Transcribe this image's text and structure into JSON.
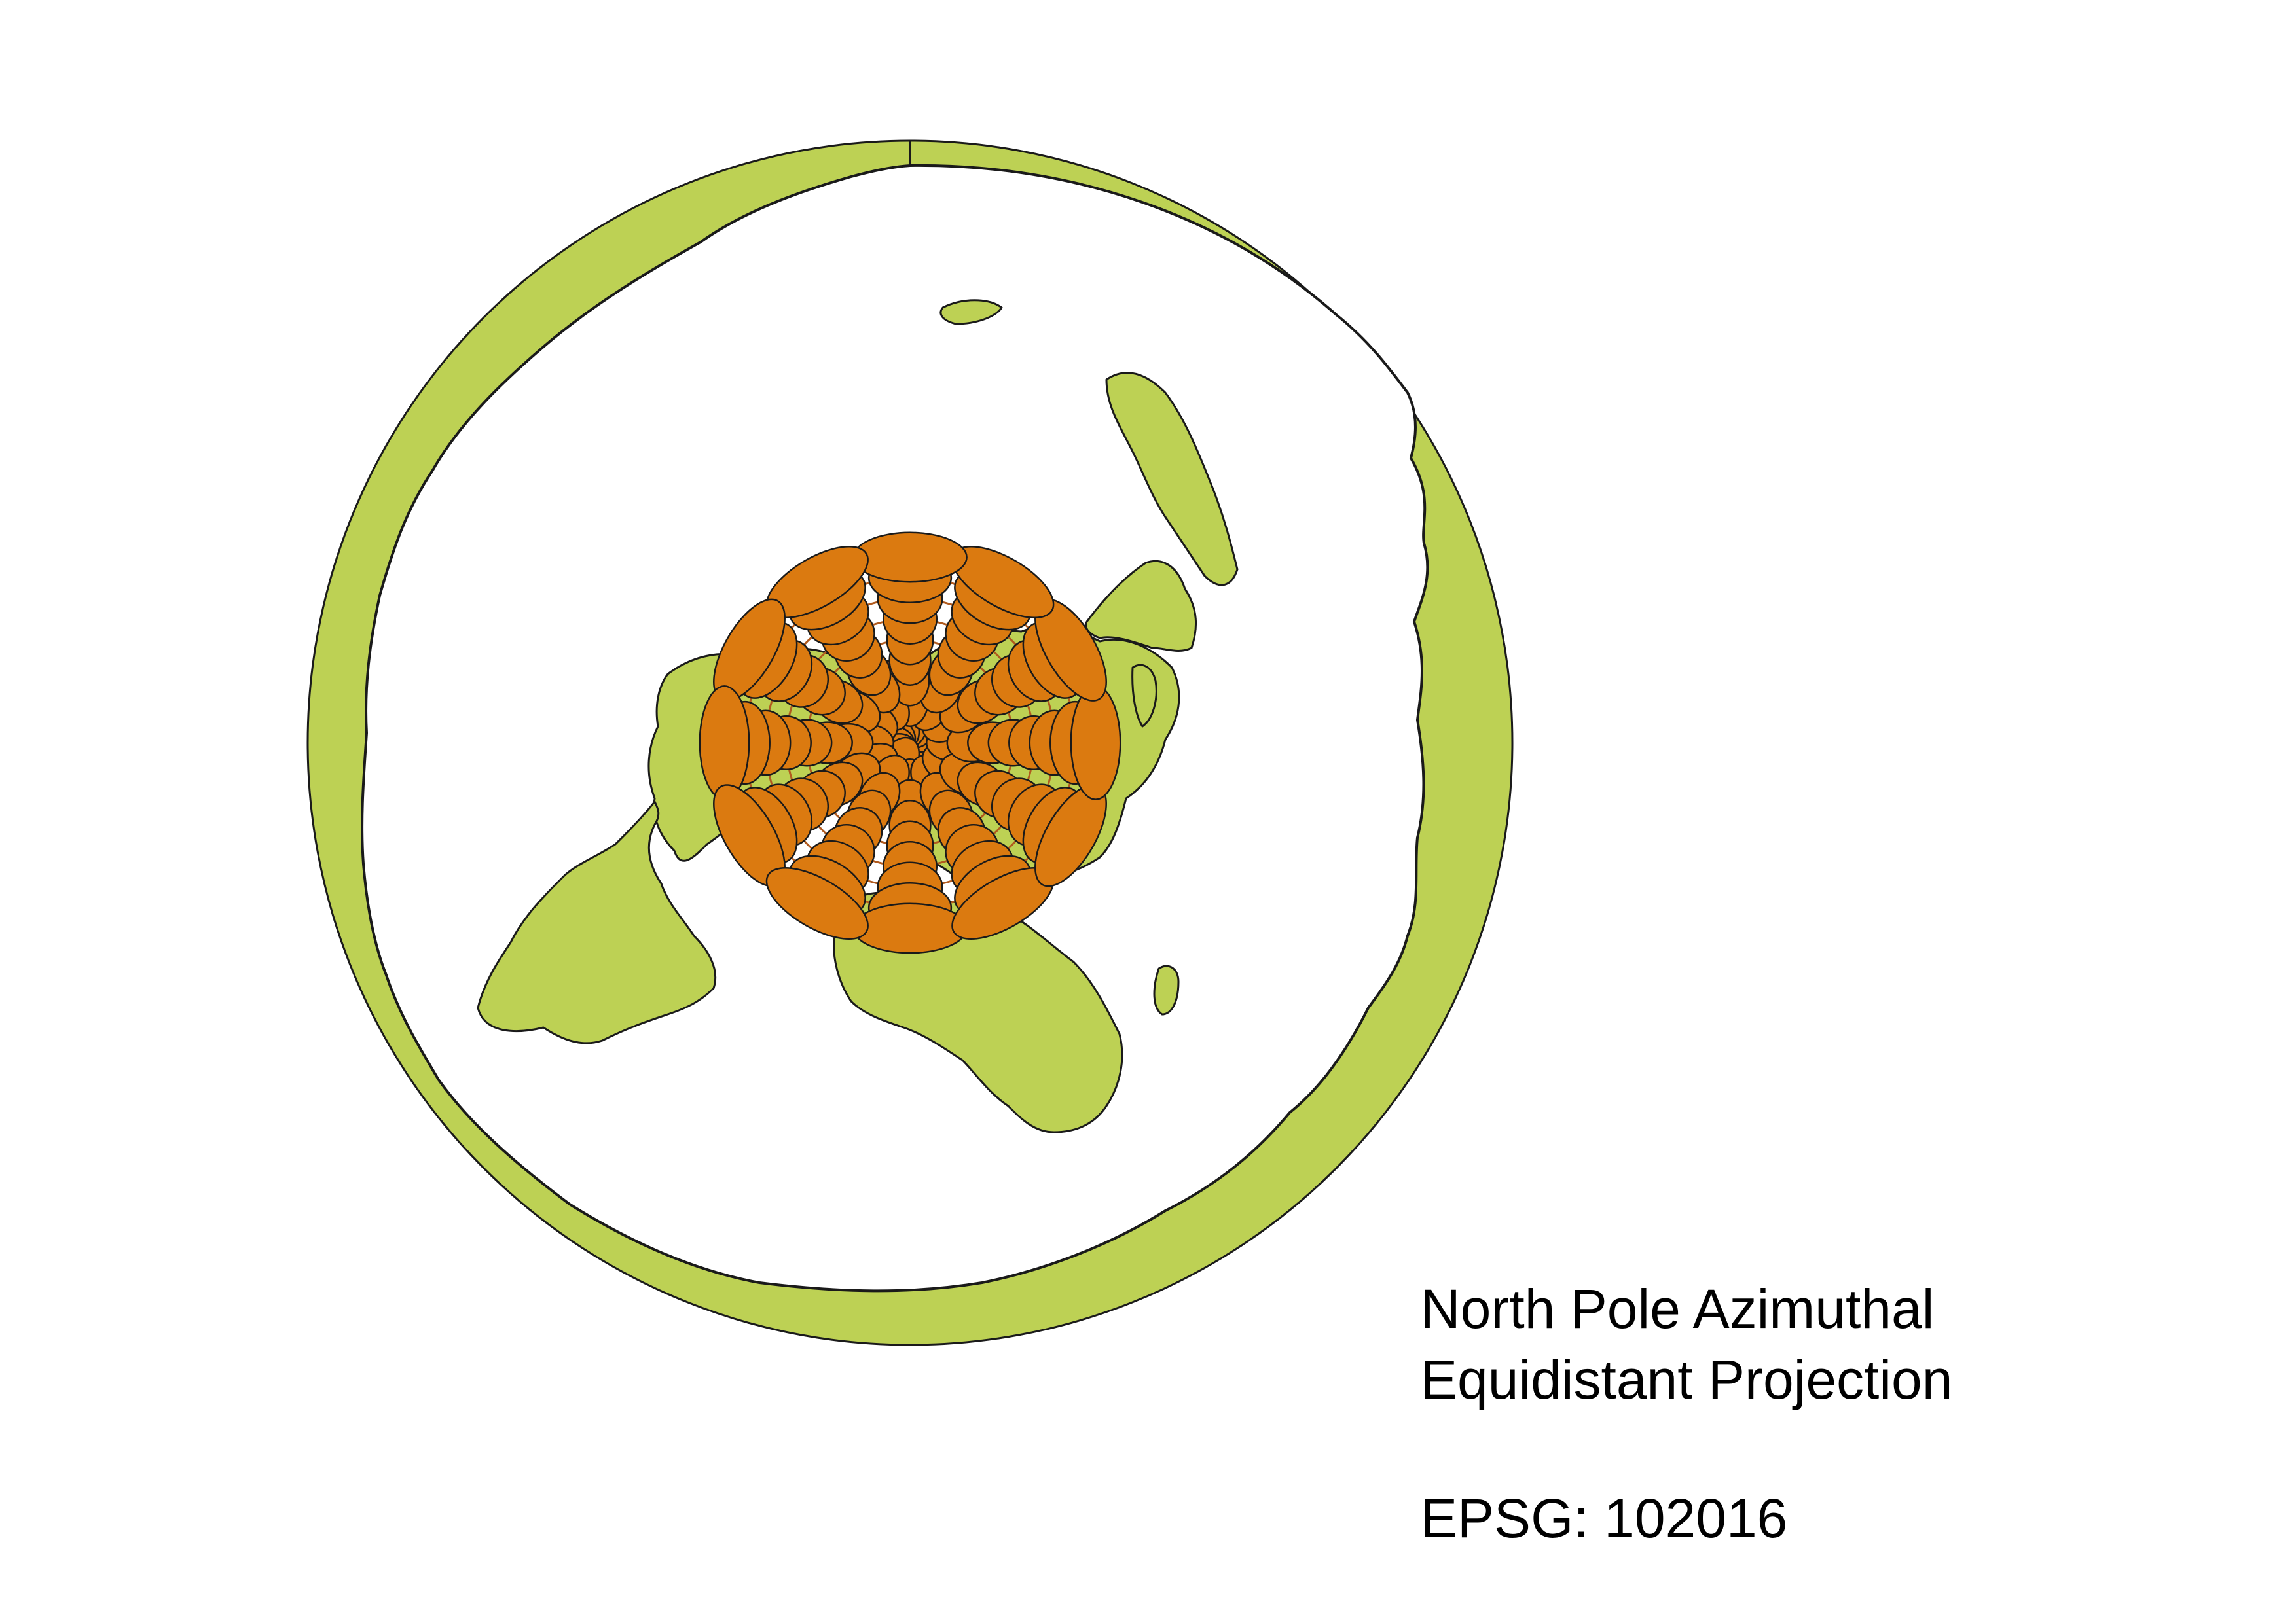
{
  "map": {
    "projection_title_line1": "North Pole Azimuthal",
    "projection_title_line2": "Equidistant Projection",
    "epsg_label": "EPSG: 102016",
    "graticule": {
      "parallels_deg": [
        75,
        60,
        45,
        30,
        15,
        0,
        -15,
        -30,
        -45
      ],
      "meridians_deg": [
        0,
        30,
        60,
        90,
        120,
        150,
        180,
        210,
        240,
        270,
        300,
        330
      ],
      "spacing_deg": 15
    },
    "indicatrix_colatitudes_deg": [
      15,
      30,
      45,
      60,
      75,
      90,
      105,
      120,
      135
    ],
    "colors": {
      "land": "#bdd154",
      "indicatrix": "#db7a10",
      "graticule": "#b05a1e",
      "outline": "#1a1a1a",
      "ocean": "#ffffff"
    }
  }
}
